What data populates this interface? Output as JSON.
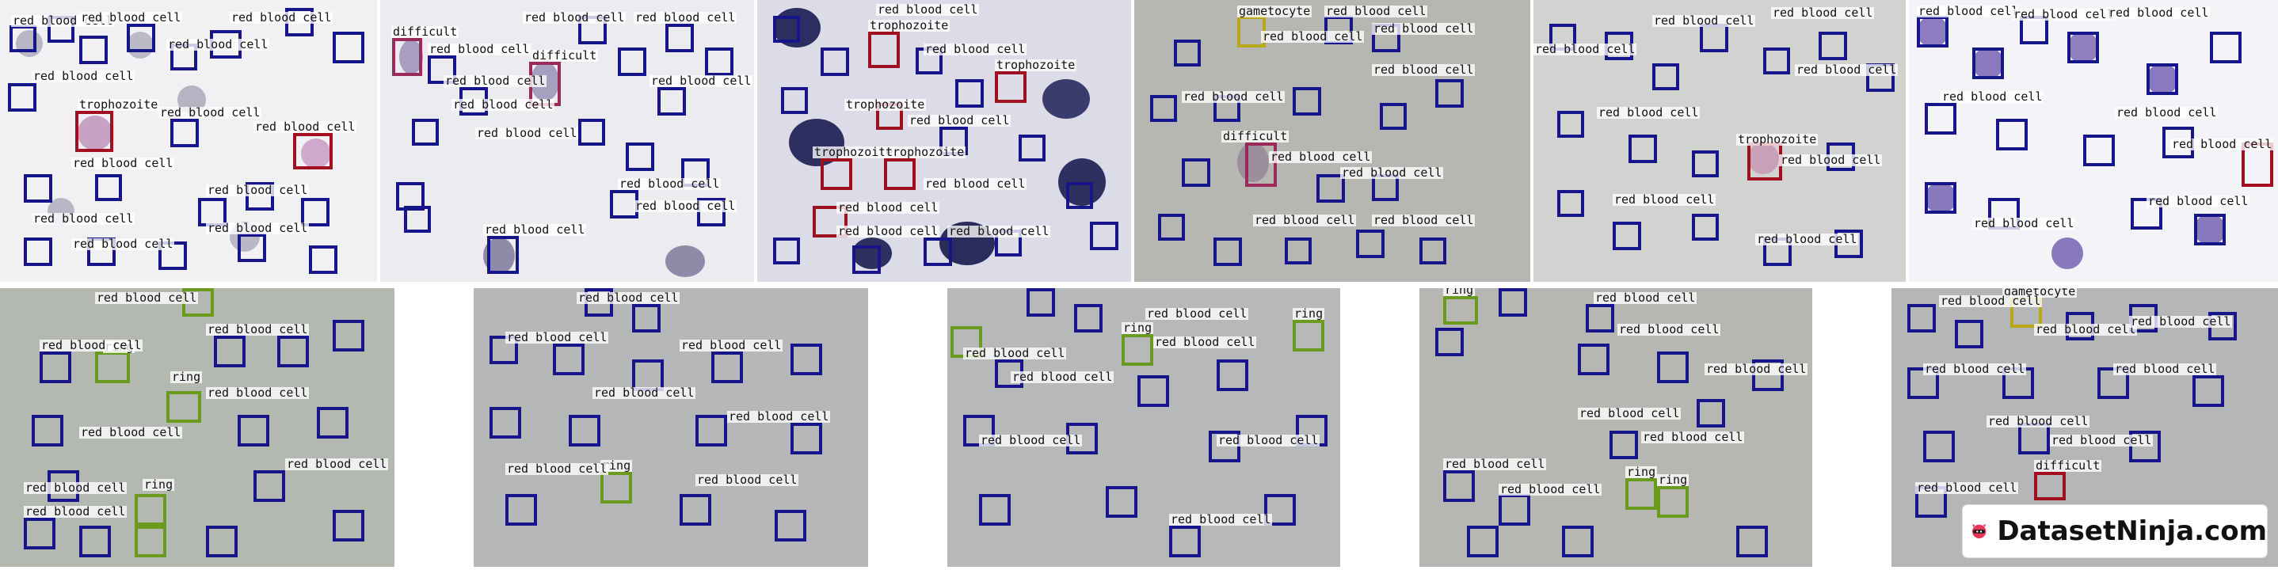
{
  "labels": {
    "rbc": "red blood cell",
    "trophozoite": "trophozoite",
    "difficult": "difficult",
    "gametocyte": "gametocyte",
    "ring": "ring"
  },
  "brand": {
    "name": "DatasetNinja.com",
    "icon": "ninja-logo-icon"
  },
  "colors": {
    "rbc": "#16168a",
    "trophozoite": "#a01020",
    "difficult": "#9a2a5a",
    "gametocyte": "#b9a81a",
    "ring": "#6a9a1e"
  },
  "panels_count": 11
}
